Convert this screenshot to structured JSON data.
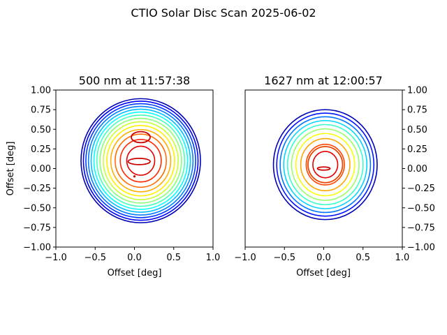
{
  "figure": {
    "suptitle": "CTIO Solar Disc Scan 2025-06-02"
  },
  "chart_data": [
    {
      "type": "contour",
      "title": "500 nm at 11:57:38",
      "xlabel": "Offset [deg]",
      "ylabel": "Offset [deg]",
      "xlim": [
        -1.0,
        1.0
      ],
      "ylim": [
        -1.0,
        1.0
      ],
      "xticks": [
        "−1.0",
        "−0.5",
        "0.0",
        "0.5",
        "1.0"
      ],
      "yticks": [
        "−1.00",
        "−0.75",
        "−0.50",
        "−0.25",
        "0.00",
        "0.25",
        "0.50",
        "0.75",
        "1.00"
      ],
      "ytick_side": "left",
      "colormap": "jet",
      "grid": false,
      "center": [
        0.08,
        0.1
      ],
      "outer_radius": {
        "x": 0.76,
        "y": 0.79
      },
      "rings": 14,
      "spacing_power": 0.55,
      "inner_features": [
        {
          "kind": "loop",
          "cx": 0.08,
          "cy": 0.4,
          "rx": 0.12,
          "ry": 0.07
        },
        {
          "kind": "loop",
          "cx": 0.06,
          "cy": 0.09,
          "rx": 0.14,
          "ry": 0.04
        },
        {
          "kind": "dot",
          "cx": 0.0,
          "cy": -0.1
        }
      ]
    },
    {
      "type": "contour",
      "title": "1627 nm at 12:00:57",
      "xlabel": "Offset [deg]",
      "ylabel": "",
      "xlim": [
        -1.0,
        1.0
      ],
      "ylim": [
        -1.0,
        1.0
      ],
      "xticks": [
        "−1.0",
        "−0.5",
        "0.0",
        "0.5",
        "1.0"
      ],
      "yticks": [
        "−1.00",
        "−0.75",
        "−0.50",
        "−0.25",
        "0.00",
        "0.25",
        "0.50",
        "0.75",
        "1.00"
      ],
      "ytick_side": "right",
      "colormap": "jet",
      "grid": false,
      "center": [
        0.02,
        0.05
      ],
      "outer_radius": {
        "x": 0.66,
        "y": 0.7
      },
      "rings": 10,
      "spacing_power": 0.62,
      "inner_features": [
        {
          "kind": "ring",
          "cx": 0.02,
          "cy": 0.05,
          "rx": 0.22,
          "ry": 0.23
        },
        {
          "kind": "loop",
          "cx": 0.0,
          "cy": 0.0,
          "rx": 0.08,
          "ry": 0.02
        }
      ]
    }
  ]
}
